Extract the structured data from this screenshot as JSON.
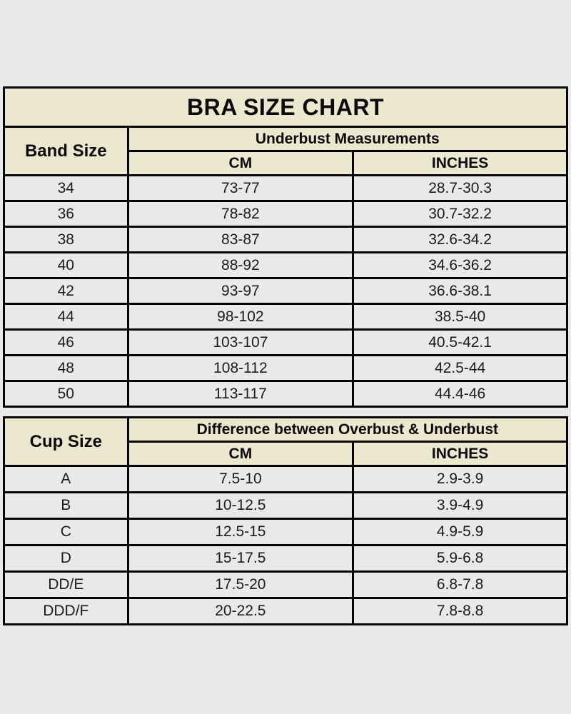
{
  "colors": {
    "page_background": "#e9e9e9",
    "header_fill": "#ece8d0",
    "row_fill": "#e9e9e9",
    "border": "#050505",
    "text": "#111111"
  },
  "chart_data": [
    {
      "type": "table",
      "title": "BRA SIZE CHART",
      "corner_header": "Band Size",
      "group_header": "Underbust Measurements",
      "sub_headers": [
        "CM",
        "INCHES"
      ],
      "rows": [
        [
          "34",
          "73-77",
          "28.7-30.3"
        ],
        [
          "36",
          "78-82",
          "30.7-32.2"
        ],
        [
          "38",
          "83-87",
          "32.6-34.2"
        ],
        [
          "40",
          "88-92",
          "34.6-36.2"
        ],
        [
          "42",
          "93-97",
          "36.6-38.1"
        ],
        [
          "44",
          "98-102",
          "38.5-40"
        ],
        [
          "46",
          "103-107",
          "40.5-42.1"
        ],
        [
          "48",
          "108-112",
          "42.5-44"
        ],
        [
          "50",
          "113-117",
          "44.4-46"
        ]
      ]
    },
    {
      "type": "table",
      "title": "",
      "corner_header": "Cup Size",
      "group_header": "Difference between Overbust & Underbust",
      "sub_headers": [
        "CM",
        "INCHES"
      ],
      "rows": [
        [
          "A",
          "7.5-10",
          "2.9-3.9"
        ],
        [
          "B",
          "10-12.5",
          "3.9-4.9"
        ],
        [
          "C",
          "12.5-15",
          "4.9-5.9"
        ],
        [
          "D",
          "15-17.5",
          "5.9-6.8"
        ],
        [
          "DD/E",
          "17.5-20",
          "6.8-7.8"
        ],
        [
          "DDD/F",
          "20-22.5",
          "7.8-8.8"
        ]
      ]
    }
  ]
}
